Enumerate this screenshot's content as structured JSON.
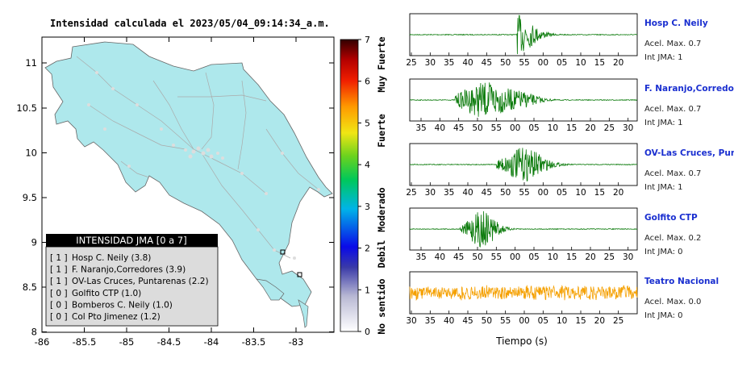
{
  "map": {
    "title": "Intensidad calculada el 2023/05/04_09:14:34_a.m.",
    "x_ticks": [
      "-86",
      "-85.5",
      "-85",
      "-84.5",
      "-84",
      "-83.5",
      "-83"
    ],
    "y_ticks": [
      "11",
      "10.5",
      "10",
      "9.5",
      "9",
      "8.5",
      "8"
    ],
    "land_color": "#aee8ec",
    "sea_color": "#ffffff"
  },
  "legend": {
    "title": "INTENSIDAD JMA [0 a 7]",
    "entries": [
      {
        "code": "[ 1 ]",
        "label": "Hosp C. Neily (3.8)"
      },
      {
        "code": "[ 1 ]",
        "label": "F. Naranjo,Corredores (3.9)"
      },
      {
        "code": "[ 1 ]",
        "label": "OV-Las Cruces, Puntarenas (2.2)"
      },
      {
        "code": "[ 0 ]",
        "label": "Golfito CTP (1.0)"
      },
      {
        "code": "[ 0 ]",
        "label": "Bomberos C. Neily (1.0)"
      },
      {
        "code": "[ 0 ]",
        "label": "Col Pto Jimenez (1.2)"
      }
    ]
  },
  "colorbar": {
    "ticks": [
      "7",
      "6",
      "5",
      "4",
      "3",
      "2",
      "1",
      "0"
    ],
    "categories": [
      "Muy Fuerte",
      "Fuerte",
      "Moderado",
      "Debil",
      "No sentido"
    ]
  },
  "chart_data": [
    {
      "type": "line",
      "name": "Hosp C. Neily",
      "x_ticks": [
        "25",
        "30",
        "35",
        "40",
        "45",
        "50",
        "55",
        "00",
        "05",
        "10",
        "15",
        "20"
      ],
      "peak_accel": "0.7",
      "jma": "1",
      "color": "#0a7a0a"
    },
    {
      "type": "line",
      "name": "F. Naranjo,Corredores",
      "x_ticks": [
        "35",
        "40",
        "45",
        "50",
        "55",
        "00",
        "05",
        "10",
        "15",
        "20",
        "25",
        "30"
      ],
      "peak_accel": "0.7",
      "jma": "1",
      "color": "#0a7a0a"
    },
    {
      "type": "line",
      "name": "OV-Las Cruces, Puntar",
      "x_ticks": [
        "25",
        "30",
        "35",
        "40",
        "45",
        "50",
        "55",
        "00",
        "05",
        "10",
        "15",
        "20"
      ],
      "peak_accel": "0.7",
      "jma": "1",
      "color": "#0a7a0a"
    },
    {
      "type": "line",
      "name": "Golfito CTP",
      "x_ticks": [
        "35",
        "40",
        "45",
        "50",
        "55",
        "00",
        "05",
        "10",
        "15",
        "20",
        "25",
        "30"
      ],
      "peak_accel": "0.2",
      "jma": "0",
      "color": "#0a7a0a"
    },
    {
      "type": "line",
      "name": "Teatro Nacional",
      "x_ticks": [
        "30",
        "35",
        "40",
        "45",
        "50",
        "55",
        "00",
        "05",
        "10",
        "15",
        "20",
        "25"
      ],
      "peak_accel": "0.0",
      "jma": "0",
      "color": "#f5a000"
    }
  ],
  "labels": {
    "accel_prefix": "Acel. Max.",
    "jma_prefix": "Int JMA:",
    "time_axis": "Tiempo (s)"
  }
}
